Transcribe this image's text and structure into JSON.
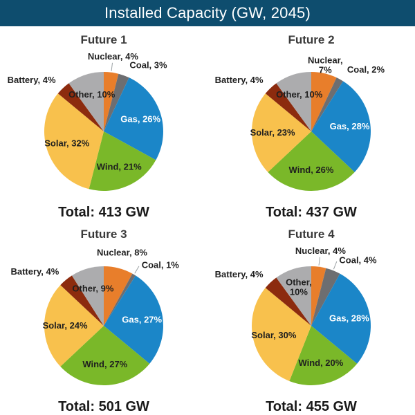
{
  "header": {
    "title": "Installed Capacity (GW, 2045)",
    "bg_color": "#0E4D6E",
    "text_color": "#FFFFFF"
  },
  "colors": {
    "Nuclear": "#E87E2B",
    "Coal": "#6D6E71",
    "Gas": "#1B86C8",
    "Wind": "#7AB829",
    "Solar": "#F8C14D",
    "Battery": "#8C2B0E",
    "Other": "#ACACAE"
  },
  "label_text_colors": {
    "Gas": "#FFFFFF",
    "default": "#1F1F1F"
  },
  "leader_line_color": "#9AA0A3",
  "chart_data": [
    {
      "type": "pie",
      "title": "Future 1",
      "total": "Total: 413 GW",
      "legend_position": "none",
      "slices": [
        {
          "name": "Nuclear",
          "pct": 4,
          "leader": true
        },
        {
          "name": "Coal",
          "pct": 3
        },
        {
          "name": "Gas",
          "pct": 26
        },
        {
          "name": "Wind",
          "pct": 21
        },
        {
          "name": "Solar",
          "pct": 32
        },
        {
          "name": "Battery",
          "pct": 4
        },
        {
          "name": "Other",
          "pct": 10
        }
      ]
    },
    {
      "type": "pie",
      "title": "Future 2",
      "total": "Total: 437 GW",
      "legend_position": "none",
      "slices": [
        {
          "name": "Nuclear",
          "pct": 7,
          "wrap": true
        },
        {
          "name": "Coal",
          "pct": 2
        },
        {
          "name": "Gas",
          "pct": 28
        },
        {
          "name": "Wind",
          "pct": 26
        },
        {
          "name": "Solar",
          "pct": 23
        },
        {
          "name": "Battery",
          "pct": 4
        },
        {
          "name": "Other",
          "pct": 10
        }
      ]
    },
    {
      "type": "pie",
      "title": "Future 3",
      "total": "Total: 501 GW",
      "legend_position": "none",
      "slices": [
        {
          "name": "Nuclear",
          "pct": 8
        },
        {
          "name": "Coal",
          "pct": 1,
          "leader": true
        },
        {
          "name": "Gas",
          "pct": 27
        },
        {
          "name": "Wind",
          "pct": 27
        },
        {
          "name": "Solar",
          "pct": 24
        },
        {
          "name": "Battery",
          "pct": 4
        },
        {
          "name": "Other",
          "pct": 9
        }
      ]
    },
    {
      "type": "pie",
      "title": "Future 4",
      "total": "Total: 455 GW",
      "legend_position": "none",
      "slices": [
        {
          "name": "Nuclear",
          "pct": 4,
          "leader": true
        },
        {
          "name": "Coal",
          "pct": 4,
          "leader": true
        },
        {
          "name": "Gas",
          "pct": 28
        },
        {
          "name": "Wind",
          "pct": 20
        },
        {
          "name": "Solar",
          "pct": 30
        },
        {
          "name": "Battery",
          "pct": 4
        },
        {
          "name": "Other",
          "pct": 10,
          "wrap": true
        }
      ]
    }
  ]
}
